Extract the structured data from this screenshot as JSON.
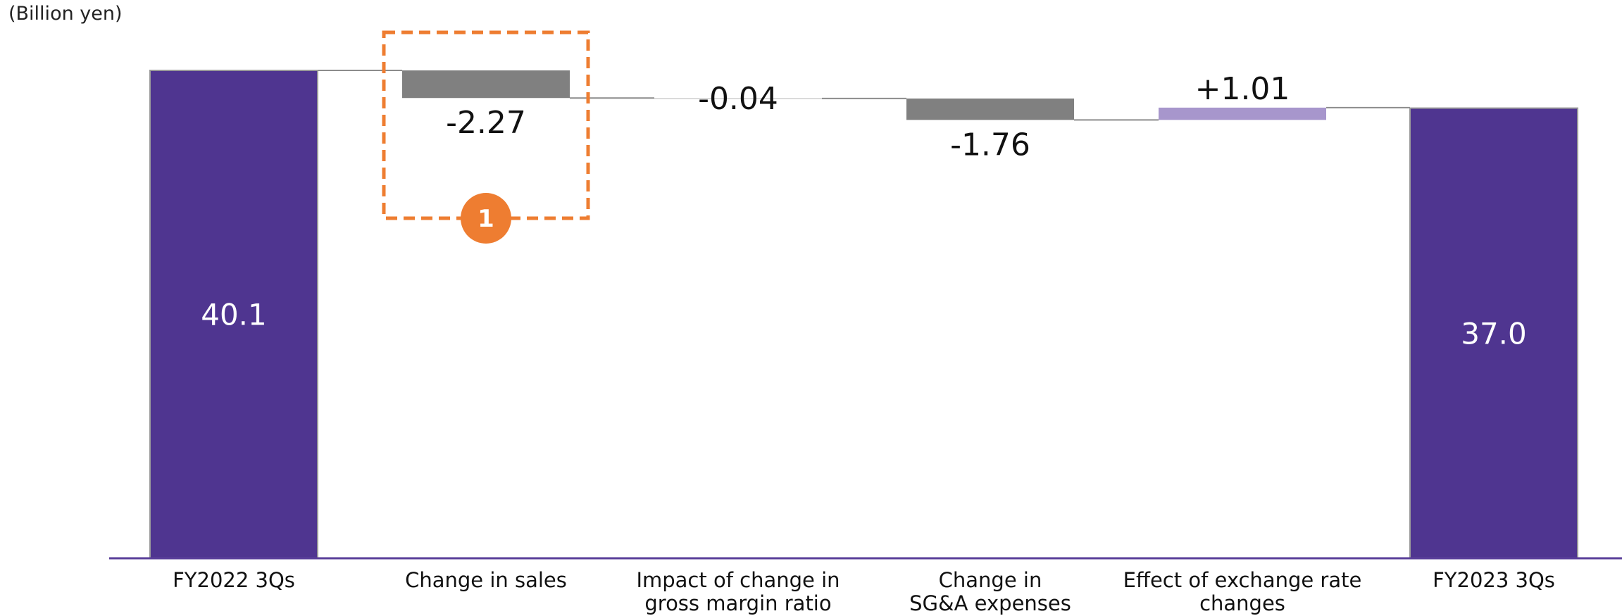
{
  "unit_label": "(Billion yen)",
  "chart_data": {
    "type": "waterfall",
    "title": "",
    "xlabel": "",
    "ylabel": "(Billion yen)",
    "categories": [
      "FY2022 3Qs",
      "Change in sales",
      "Impact of change in gross margin ratio",
      "Change in SG&A expenses",
      "Effect of exchange rate changes",
      "FY2023 3Qs"
    ],
    "category_lines": [
      [
        "FY2022 3Qs"
      ],
      [
        "Change in sales"
      ],
      [
        "Impact of change in",
        "gross margin ratio"
      ],
      [
        "Change in",
        "SG&A expenses"
      ],
      [
        "Effect of exchange rate",
        "changes"
      ],
      [
        "FY2023 3Qs"
      ]
    ],
    "values": [
      40.1,
      -2.27,
      -0.04,
      -1.76,
      1.01,
      37.0
    ],
    "value_labels": [
      "40.1",
      "-2.27",
      "-0.04",
      "-1.76",
      "+1.01",
      "37.0"
    ],
    "kinds": [
      "total",
      "delta",
      "delta",
      "delta",
      "delta",
      "total"
    ],
    "highlight": {
      "category_index": 1,
      "badge": "1"
    },
    "colors": {
      "total": "#4f3590",
      "decrease": "#808080",
      "increase": "#a796cc",
      "axis": "#5a3f9a",
      "connector": "#8c8c8c",
      "highlight": "#ee7d31"
    },
    "ylim": [
      0,
      40.1
    ],
    "grid": false,
    "legend": "none"
  }
}
